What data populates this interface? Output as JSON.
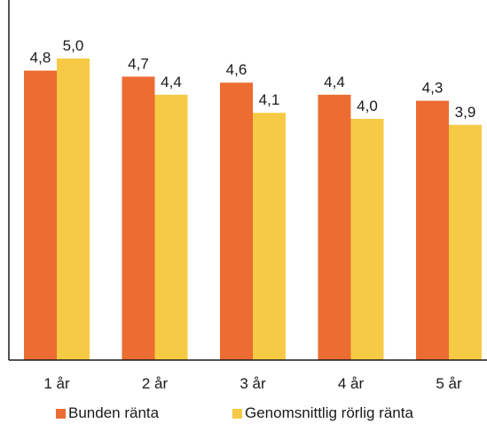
{
  "chart_data": {
    "type": "bar",
    "categories": [
      "1 år",
      "2 år",
      "3 år",
      "4 år",
      "5 år"
    ],
    "series": [
      {
        "name": "Bunden ränta",
        "color": "#ec6c32",
        "values": [
          4.8,
          4.7,
          4.6,
          4.4,
          4.3
        ],
        "labels": [
          "4,8",
          "4,7",
          "4,6",
          "4,4",
          "4,3"
        ]
      },
      {
        "name": "Genomsnittlig rörlig ränta",
        "color": "#f6ca45",
        "values": [
          5.0,
          4.4,
          4.1,
          4.0,
          3.9
        ],
        "labels": [
          "5,0",
          "4,4",
          "4,1",
          "4,0",
          "3,9"
        ]
      }
    ],
    "title": "",
    "xlabel": "",
    "ylabel": "",
    "ylim": [
      0,
      5.7
    ],
    "grid": false,
    "legend_position": "bottom"
  }
}
